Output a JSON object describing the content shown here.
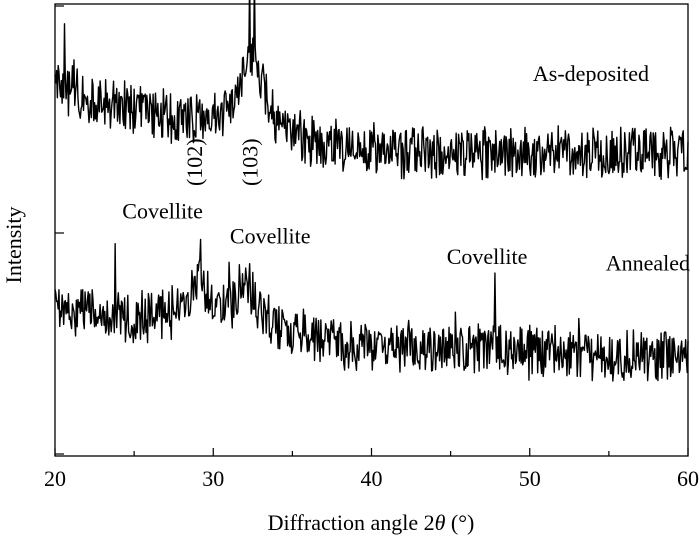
{
  "chart_data": {
    "type": "line",
    "title": "",
    "xlabel": "Diffraction angle 2θ (°)",
    "xlabel_parts": [
      "Diffraction angle 2",
      "θ",
      " (°)"
    ],
    "ylabel": "Intensity",
    "xlim": [
      20,
      60
    ],
    "ylim": [
      0,
      100
    ],
    "x_ticks": [
      20,
      30,
      40,
      50,
      60
    ],
    "x_tick_labels": [
      "20",
      "30",
      "40",
      "50",
      "60"
    ],
    "x_minor_step": 5,
    "y_tick_labels": false,
    "grid": false,
    "series": [
      {
        "name": "As-deposited",
        "offset": 67,
        "noise": 5,
        "x_step": 0.05,
        "profile": [
          [
            20,
            15
          ],
          [
            22,
            12
          ],
          [
            24,
            10
          ],
          [
            26,
            9
          ],
          [
            28,
            8
          ],
          [
            30,
            8
          ],
          [
            31,
            10
          ],
          [
            31.8,
            16
          ],
          [
            32.4,
            22
          ],
          [
            33,
            16
          ],
          [
            33.6,
            9
          ],
          [
            34.5,
            5
          ],
          [
            36,
            3
          ],
          [
            38,
            2
          ],
          [
            40,
            1
          ],
          [
            45,
            0
          ],
          [
            50,
            0
          ],
          [
            60,
            0
          ]
        ],
        "spikes": [
          [
            32.3,
            19
          ],
          [
            32.6,
            14
          ],
          [
            20.6,
            9
          ],
          [
            21.2,
            6
          ],
          [
            33.2,
            7
          ],
          [
            24.4,
            6
          ]
        ]
      },
      {
        "name": "Annealed",
        "offset": 22,
        "noise": 5,
        "x_step": 0.05,
        "profile": [
          [
            20,
            11
          ],
          [
            22,
            10
          ],
          [
            24,
            9
          ],
          [
            26,
            9
          ],
          [
            27.5,
            10
          ],
          [
            28.5,
            13
          ],
          [
            29.2,
            17
          ],
          [
            29.8,
            12
          ],
          [
            30.5,
            9
          ],
          [
            31.2,
            12
          ],
          [
            32,
            16
          ],
          [
            32.8,
            12
          ],
          [
            33.5,
            8
          ],
          [
            35,
            5
          ],
          [
            37,
            3
          ],
          [
            40,
            2
          ],
          [
            45,
            2
          ],
          [
            47,
            2
          ],
          [
            48,
            3
          ],
          [
            49,
            1
          ],
          [
            55,
            0
          ],
          [
            60,
            0
          ]
        ],
        "spikes": [
          [
            29.2,
            8
          ],
          [
            47.8,
            14
          ],
          [
            23.8,
            10
          ],
          [
            31,
            8
          ],
          [
            45.3,
            6
          ],
          [
            53.1,
            7
          ]
        ]
      }
    ],
    "annotations": [
      {
        "text": "As-deposited",
        "x": 50.2,
        "y": 83,
        "anchor": "start",
        "rotate": 0
      },
      {
        "text": "Annealed",
        "x": 54.8,
        "y": 41,
        "anchor": "start",
        "rotate": 0
      },
      {
        "text": "Covellite",
        "x": 26.8,
        "y": 52.5,
        "anchor": "middle",
        "rotate": 0
      },
      {
        "text": "Covellite",
        "x": 33.6,
        "y": 47,
        "anchor": "middle",
        "rotate": 0
      },
      {
        "text": "Covellite",
        "x": 47.3,
        "y": 42.5,
        "anchor": "middle",
        "rotate": 0
      },
      {
        "text": "(102)",
        "x": 29.3,
        "y": 65,
        "anchor": "middle",
        "rotate": -90
      },
      {
        "text": "(103)",
        "x": 32.8,
        "y": 65,
        "anchor": "middle",
        "rotate": -90
      }
    ]
  }
}
